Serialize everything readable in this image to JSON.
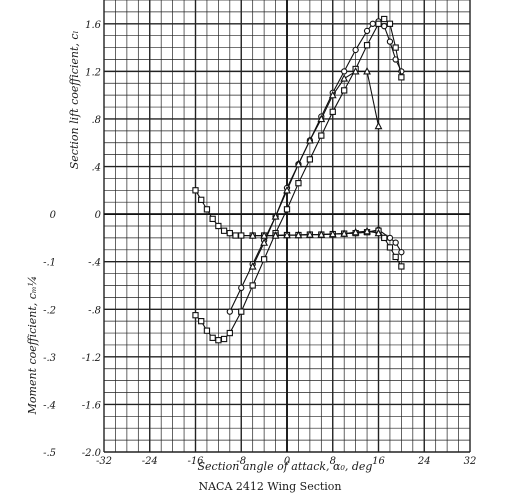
{
  "chart_data": {
    "type": "line",
    "title": "NACA 2412 Wing Section",
    "xlabel": "Section angle of attack, α₀, deg",
    "ylabel_lift": "Section lift coefficient, cₗ",
    "ylabel_moment": "Moment coefficient, cₘ¼",
    "xlim": [
      -32,
      32
    ],
    "ylim_lift": [
      -2.0,
      1.8
    ],
    "ylim_moment": [
      -0.5,
      0.1
    ],
    "x_ticks": [
      "-32",
      "-24",
      "-16",
      "-8",
      "0",
      "8",
      "16",
      "24",
      "32"
    ],
    "y_lift_ticks": [
      "1.6",
      "1.2",
      ".8",
      ".4",
      "0",
      "-.4",
      "-.8",
      "-1.2",
      "-1.6",
      "-2.0"
    ],
    "y_moment_ticks": [
      "0",
      "-.1",
      "-.2",
      "-.3",
      "-.4",
      "-.5"
    ],
    "grid": true,
    "lift_series": [
      {
        "marker": "circle",
        "x": [
          -10,
          -8,
          -6,
          -4,
          -2,
          0,
          2,
          4,
          6,
          8,
          10,
          12,
          14,
          15,
          16,
          17,
          18,
          19,
          20
        ],
        "y": [
          -0.82,
          -0.62,
          -0.42,
          -0.22,
          -0.02,
          0.22,
          0.42,
          0.62,
          0.82,
          1.02,
          1.2,
          1.38,
          1.54,
          1.6,
          1.62,
          1.58,
          1.45,
          1.3,
          1.2
        ]
      },
      {
        "marker": "square",
        "x": [
          -16,
          -15,
          -14,
          -13,
          -12,
          -11,
          -10,
          -8,
          -6,
          -4,
          -2,
          0,
          2,
          4,
          6,
          8,
          10,
          12,
          14,
          16,
          17,
          18,
          19,
          20
        ],
        "y": [
          -0.85,
          -0.9,
          -0.98,
          -1.04,
          -1.06,
          -1.05,
          -1.0,
          -0.82,
          -0.6,
          -0.38,
          -0.16,
          0.04,
          0.26,
          0.46,
          0.66,
          0.86,
          1.04,
          1.22,
          1.42,
          1.6,
          1.64,
          1.6,
          1.4,
          1.15
        ]
      },
      {
        "marker": "triangle",
        "x": [
          -6,
          -4,
          -2,
          0,
          2,
          4,
          6,
          8,
          10,
          12,
          14,
          16
        ],
        "y": [
          -0.44,
          -0.24,
          -0.02,
          0.2,
          0.42,
          0.62,
          0.8,
          1.0,
          1.14,
          1.2,
          1.2,
          0.74
        ]
      }
    ],
    "moment_series": [
      {
        "marker": "circle",
        "x": [
          -10,
          -8,
          -6,
          -4,
          -2,
          0,
          2,
          4,
          6,
          8,
          10,
          12,
          14,
          16,
          18,
          19,
          20
        ],
        "y": [
          -0.04,
          -0.045,
          -0.045,
          -0.045,
          -0.045,
          -0.044,
          -0.044,
          -0.043,
          -0.043,
          -0.042,
          -0.041,
          -0.04,
          -0.038,
          -0.033,
          -0.05,
          -0.06,
          -0.08
        ]
      },
      {
        "marker": "square",
        "x": [
          -16,
          -15,
          -14,
          -13,
          -12,
          -11,
          -10,
          -9,
          -8,
          -6,
          -4,
          -2,
          0,
          2,
          4,
          6,
          8,
          10,
          12,
          14,
          16,
          17,
          18,
          19,
          20
        ],
        "y": [
          0.05,
          0.03,
          0.01,
          -0.01,
          -0.025,
          -0.035,
          -0.04,
          -0.045,
          -0.045,
          -0.045,
          -0.045,
          -0.045,
          -0.044,
          -0.044,
          -0.043,
          -0.043,
          -0.042,
          -0.041,
          -0.04,
          -0.038,
          -0.035,
          -0.05,
          -0.07,
          -0.09,
          -0.11
        ]
      },
      {
        "marker": "triangle",
        "x": [
          -6,
          -4,
          -2,
          0,
          2,
          4,
          6,
          8,
          10,
          12,
          14,
          16
        ],
        "y": [
          -0.045,
          -0.045,
          -0.045,
          -0.044,
          -0.044,
          -0.043,
          -0.043,
          -0.042,
          -0.041,
          -0.038,
          -0.036,
          -0.04
        ]
      }
    ]
  }
}
